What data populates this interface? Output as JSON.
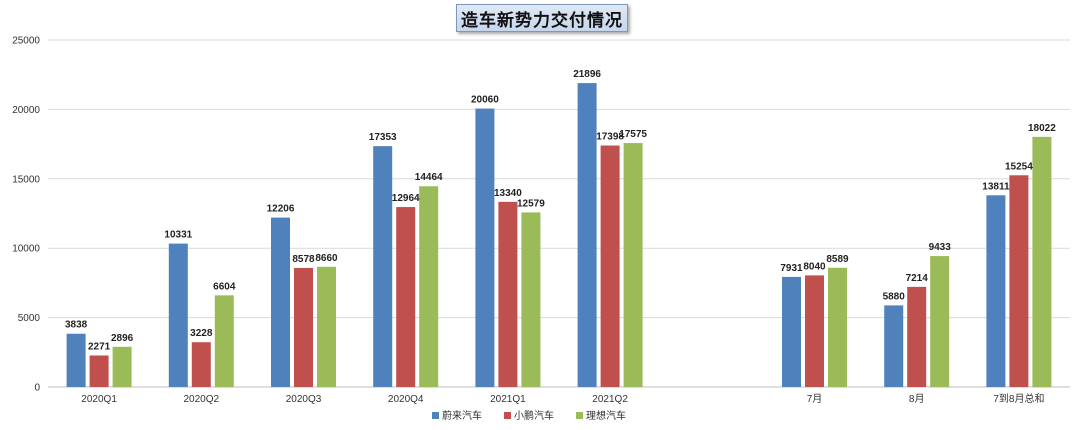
{
  "chart_data": {
    "type": "bar",
    "title": "造车新势力交付情况",
    "xlabel": "",
    "ylabel": "",
    "ylim": [
      0,
      25000
    ],
    "yticks": [
      0,
      5000,
      10000,
      15000,
      20000,
      25000
    ],
    "grid": true,
    "legend": "bottom",
    "categories": [
      "2020Q1",
      "2020Q2",
      "2020Q3",
      "2020Q4",
      "2021Q1",
      "2021Q2",
      "",
      "7月",
      "8月",
      "7到8月总和"
    ],
    "series": [
      {
        "name": "蔚来汽车",
        "color": "#4f81bd",
        "values": [
          3838,
          10331,
          12206,
          17353,
          20060,
          21896,
          null,
          7931,
          5880,
          13811
        ]
      },
      {
        "name": "小鹏汽车",
        "color": "#c0504d",
        "values": [
          2271,
          3228,
          8578,
          12964,
          13340,
          17398,
          null,
          8040,
          7214,
          15254
        ]
      },
      {
        "name": "理想汽车",
        "color": "#9bbb59",
        "values": [
          2896,
          6604,
          8660,
          14464,
          12579,
          17575,
          null,
          8589,
          9433,
          18022
        ]
      }
    ]
  }
}
